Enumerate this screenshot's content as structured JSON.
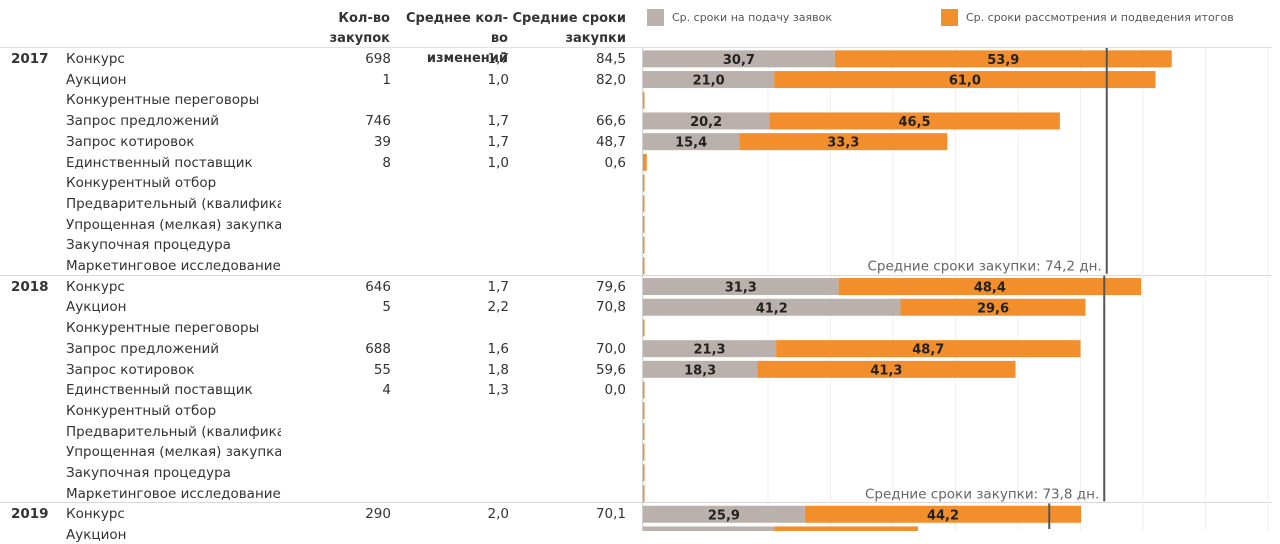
{
  "headers": {
    "count": "Кол-во закупок",
    "changes": "Среднее кол-во\nизменений",
    "duration": "Средние сроки\nзакупки"
  },
  "legend": [
    {
      "label": "Ср. сроки на подачу заявок",
      "color": "#bab0ac"
    },
    {
      "label": "Ср. сроки рассмотрения и подведения итогов",
      "color": "#f28e2b"
    }
  ],
  "colors": {
    "submission": "#bab0ac",
    "review": "#f28e2b",
    "refline": "#555555"
  },
  "chart_data": {
    "type": "bar",
    "orientation": "horizontal",
    "stacked": true,
    "xlim": [
      0,
      100
    ],
    "grid": true,
    "legend_position": "top",
    "series_names": [
      "Ср. сроки на подачу заявок",
      "Ср. сроки рассмотрения и подведения итогов"
    ],
    "groups": [
      {
        "year": "2017",
        "avg_label": "Средние сроки закупки: 74,2 дн.",
        "avg_value": 74.2,
        "rows": [
          {
            "method": "Конкурс",
            "count": "698",
            "changes": "1,7",
            "duration": "84,5",
            "submission": 30.7,
            "review": 53.9,
            "sub_label": "30,7",
            "rev_label": "53,9"
          },
          {
            "method": "Аукцион",
            "count": "1",
            "changes": "1,0",
            "duration": "82,0",
            "submission": 21.0,
            "review": 61.0,
            "sub_label": "21,0",
            "rev_label": "61,0"
          },
          {
            "method": "Конкурентные переговоры",
            "count": "",
            "changes": "",
            "duration": "",
            "submission": 0,
            "review": 0,
            "sub_label": "",
            "rev_label": ""
          },
          {
            "method": "Запрос предложений",
            "count": "746",
            "changes": "1,7",
            "duration": "66,6",
            "submission": 20.2,
            "review": 46.5,
            "sub_label": "20,2",
            "rev_label": "46,5"
          },
          {
            "method": "Запрос котировок",
            "count": "39",
            "changes": "1,7",
            "duration": "48,7",
            "submission": 15.4,
            "review": 33.3,
            "sub_label": "15,4",
            "rev_label": "33,3"
          },
          {
            "method": "Единственный поставщик",
            "count": "8",
            "changes": "1,0",
            "duration": "0,6",
            "submission": 0,
            "review": 0.6,
            "sub_label": "",
            "rev_label": ""
          },
          {
            "method": "Конкурентный отбор",
            "count": "",
            "changes": "",
            "duration": "",
            "submission": 0,
            "review": 0,
            "sub_label": "",
            "rev_label": ""
          },
          {
            "method": "Предварительный (квалифика..",
            "count": "",
            "changes": "",
            "duration": "",
            "submission": 0,
            "review": 0,
            "sub_label": "",
            "rev_label": ""
          },
          {
            "method": "Упрощенная (мелкая) закупка ..",
            "count": "",
            "changes": "",
            "duration": "",
            "submission": 0,
            "review": 0,
            "sub_label": "",
            "rev_label": ""
          },
          {
            "method": "Закупочная процедура",
            "count": "",
            "changes": "",
            "duration": "",
            "submission": 0,
            "review": 0,
            "sub_label": "",
            "rev_label": ""
          },
          {
            "method": "Маркетинговое исследование",
            "count": "",
            "changes": "",
            "duration": "",
            "submission": 0,
            "review": 0,
            "sub_label": "",
            "rev_label": ""
          }
        ]
      },
      {
        "year": "2018",
        "avg_label": "Средние сроки закупки: 73,8 дн.",
        "avg_value": 73.8,
        "rows": [
          {
            "method": "Конкурс",
            "count": "646",
            "changes": "1,7",
            "duration": "79,6",
            "submission": 31.3,
            "review": 48.4,
            "sub_label": "31,3",
            "rev_label": "48,4"
          },
          {
            "method": "Аукцион",
            "count": "5",
            "changes": "2,2",
            "duration": "70,8",
            "submission": 41.2,
            "review": 29.6,
            "sub_label": "41,2",
            "rev_label": "29,6"
          },
          {
            "method": "Конкурентные переговоры",
            "count": "",
            "changes": "",
            "duration": "",
            "submission": 0,
            "review": 0,
            "sub_label": "",
            "rev_label": ""
          },
          {
            "method": "Запрос предложений",
            "count": "688",
            "changes": "1,6",
            "duration": "70,0",
            "submission": 21.3,
            "review": 48.7,
            "sub_label": "21,3",
            "rev_label": "48,7"
          },
          {
            "method": "Запрос котировок",
            "count": "55",
            "changes": "1,8",
            "duration": "59,6",
            "submission": 18.3,
            "review": 41.3,
            "sub_label": "18,3",
            "rev_label": "41,3"
          },
          {
            "method": "Единственный поставщик",
            "count": "4",
            "changes": "1,3",
            "duration": "0,0",
            "submission": 0,
            "review": 0,
            "sub_label": "",
            "rev_label": ""
          },
          {
            "method": "Конкурентный отбор",
            "count": "",
            "changes": "",
            "duration": "",
            "submission": 0,
            "review": 0,
            "sub_label": "",
            "rev_label": ""
          },
          {
            "method": "Предварительный (квалифика..",
            "count": "",
            "changes": "",
            "duration": "",
            "submission": 0,
            "review": 0,
            "sub_label": "",
            "rev_label": ""
          },
          {
            "method": "Упрощенная (мелкая) закупка ..",
            "count": "",
            "changes": "",
            "duration": "",
            "submission": 0,
            "review": 0,
            "sub_label": "",
            "rev_label": ""
          },
          {
            "method": "Закупочная процедура",
            "count": "",
            "changes": "",
            "duration": "",
            "submission": 0,
            "review": 0,
            "sub_label": "",
            "rev_label": ""
          },
          {
            "method": "Маркетинговое исследование",
            "count": "",
            "changes": "",
            "duration": "",
            "submission": 0,
            "review": 0,
            "sub_label": "",
            "rev_label": ""
          }
        ]
      },
      {
        "year": "2019",
        "avg_label": "",
        "avg_value": 65.0,
        "rows": [
          {
            "method": "Конкурс",
            "count": "290",
            "changes": "2,0",
            "duration": "70,1",
            "submission": 25.9,
            "review": 44.2,
            "sub_label": "25,9",
            "rev_label": "44,2"
          },
          {
            "method": "Аукцион",
            "count": "",
            "changes": "",
            "duration": "",
            "submission": 21.0,
            "review": 23.0,
            "sub_label": "",
            "rev_label": ""
          }
        ]
      }
    ]
  }
}
